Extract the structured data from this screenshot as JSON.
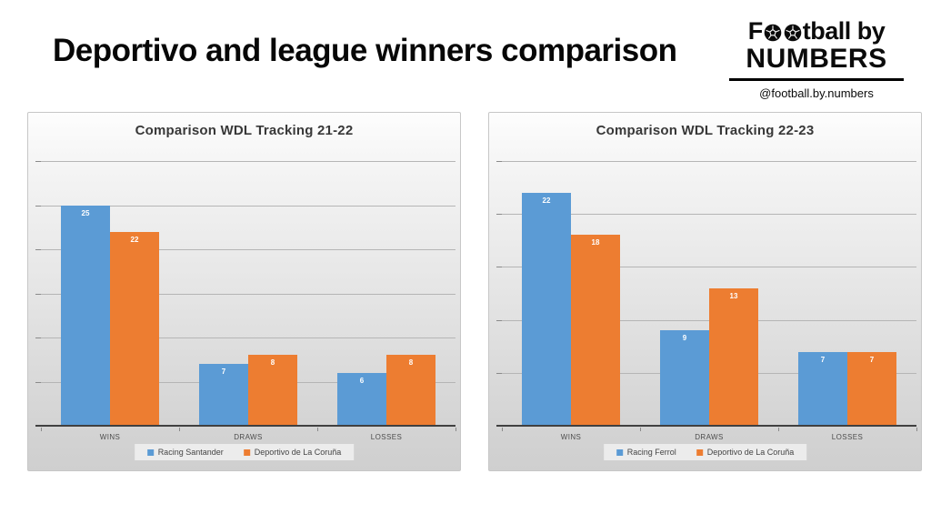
{
  "header": {
    "title": "Deportivo and league winners comparison"
  },
  "logo": {
    "line1_prefix": "F",
    "line1_suffix": "tball by",
    "line2": "NUMBERS",
    "handle": "@football.by.numbers",
    "ball_icon": "football-icon"
  },
  "colors": {
    "blue": "#5B9BD5",
    "orange": "#ED7D31",
    "grid": "#b5b5b5",
    "axis": "#404040"
  },
  "chart_data": [
    {
      "type": "bar",
      "title": "Comparison WDL Tracking 21-22",
      "categories": [
        "WINS",
        "DRAWS",
        "LOSSES"
      ],
      "series": [
        {
          "name": "Racing Santander",
          "color": "#5B9BD5",
          "values": [
            25,
            7,
            6
          ]
        },
        {
          "name": "Deportivo de La Coruña",
          "color": "#ED7D31",
          "values": [
            22,
            8,
            8
          ]
        }
      ],
      "xlabel": "",
      "ylabel": "",
      "ylim": [
        0,
        30
      ],
      "grid_interval": 5,
      "grid": true,
      "legend_position": "bottom",
      "data_labels": true
    },
    {
      "type": "bar",
      "title": "Comparison WDL Tracking 22-23",
      "categories": [
        "WINS",
        "DRAWS",
        "LOSSES"
      ],
      "series": [
        {
          "name": "Racing Ferrol",
          "color": "#5B9BD5",
          "values": [
            22,
            9,
            7
          ]
        },
        {
          "name": "Deportivo de La Coruña",
          "color": "#ED7D31",
          "values": [
            18,
            13,
            7
          ]
        }
      ],
      "xlabel": "",
      "ylabel": "",
      "ylim": [
        0,
        25
      ],
      "grid_interval": 5,
      "grid": true,
      "legend_position": "bottom",
      "data_labels": true
    }
  ]
}
